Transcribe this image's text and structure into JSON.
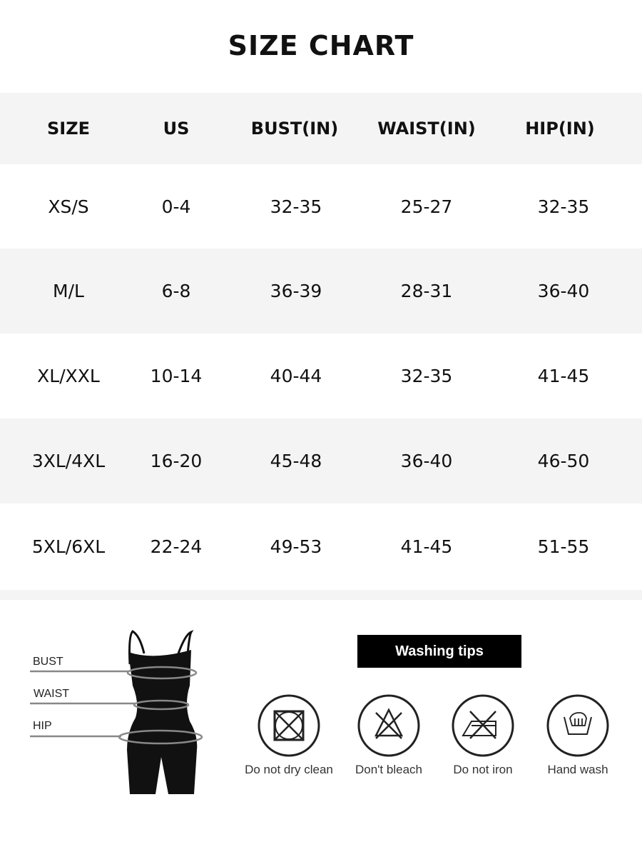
{
  "title": "SIZE CHART",
  "table": {
    "headers": [
      "SIZE",
      "US",
      "BUST(IN)",
      "WAIST(IN)",
      "HIP(IN)"
    ],
    "rows": [
      [
        "XS/S",
        "0-4",
        "32-35",
        "25-27",
        "32-35"
      ],
      [
        "M/L",
        "6-8",
        "36-39",
        "28-31",
        "36-40"
      ],
      [
        "XL/XXL",
        "10-14",
        "40-44",
        "32-35",
        "41-45"
      ],
      [
        "3XL/4XL",
        "16-20",
        "45-48",
        "36-40",
        "46-50"
      ],
      [
        "5XL/6XL",
        "22-24",
        "49-53",
        "41-45",
        "51-55"
      ]
    ]
  },
  "measure_labels": {
    "bust": "BUST",
    "waist": "WAIST",
    "hip": "HIP"
  },
  "washing": {
    "title": "Washing tips",
    "items": [
      {
        "icon": "no-dry-clean-icon",
        "label": "Do not dry clean"
      },
      {
        "icon": "no-bleach-icon",
        "label": "Don't bleach"
      },
      {
        "icon": "no-iron-icon",
        "label": "Do not iron"
      },
      {
        "icon": "hand-wash-icon",
        "label": "Hand wash"
      }
    ]
  }
}
